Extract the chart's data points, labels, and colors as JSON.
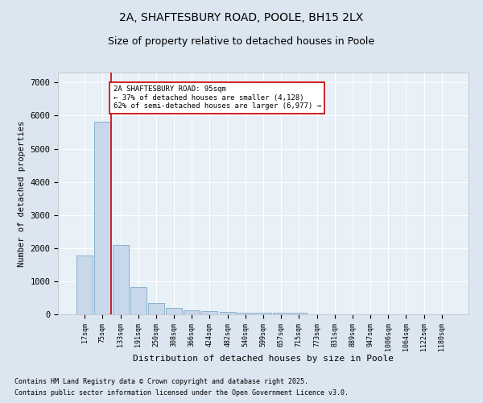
{
  "title_line1": "2A, SHAFTESBURY ROAD, POOLE, BH15 2LX",
  "title_line2": "Size of property relative to detached houses in Poole",
  "xlabel": "Distribution of detached houses by size in Poole",
  "ylabel": "Number of detached properties",
  "categories": [
    "17sqm",
    "75sqm",
    "133sqm",
    "191sqm",
    "250sqm",
    "308sqm",
    "366sqm",
    "424sqm",
    "482sqm",
    "540sqm",
    "599sqm",
    "657sqm",
    "715sqm",
    "773sqm",
    "831sqm",
    "889sqm",
    "947sqm",
    "1006sqm",
    "1064sqm",
    "1122sqm",
    "1180sqm"
  ],
  "values": [
    1780,
    5820,
    2100,
    820,
    340,
    205,
    130,
    90,
    70,
    60,
    55,
    50,
    45,
    0,
    0,
    0,
    0,
    0,
    0,
    0,
    0
  ],
  "bar_color": "#c8d8ea",
  "bar_edge_color": "#7aaac8",
  "vline_x": 1.5,
  "vline_color": "#cc0000",
  "annotation_text": "2A SHAFTESBURY ROAD: 95sqm\n← 37% of detached houses are smaller (4,128)\n62% of semi-detached houses are larger (6,977) →",
  "annotation_box_color": "#ffffff",
  "annotation_box_edge": "#cc0000",
  "ylim": [
    0,
    7300
  ],
  "yticks": [
    0,
    1000,
    2000,
    3000,
    4000,
    5000,
    6000,
    7000
  ],
  "footer_line1": "Contains HM Land Registry data © Crown copyright and database right 2025.",
  "footer_line2": "Contains public sector information licensed under the Open Government Licence v3.0.",
  "bg_color": "#dce6f0",
  "plot_bg_color": "#e8f0f8"
}
